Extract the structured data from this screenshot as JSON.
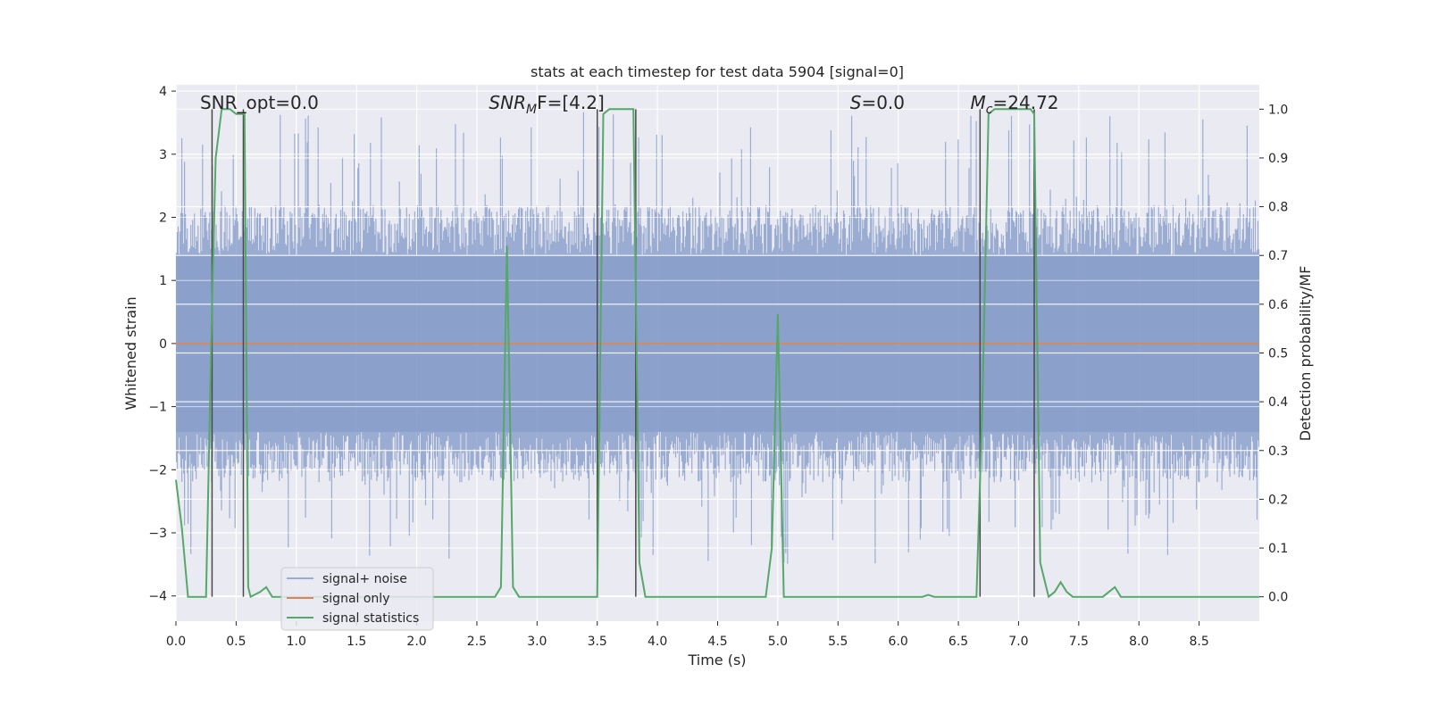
{
  "chart_data": {
    "type": "line",
    "title": "stats at each timestep for test data 5904 [signal=0]",
    "xlabel": "Time (s)",
    "ylabel_left": "Whitened strain",
    "ylabel_right": "Detection probability/MF",
    "xlim": [
      0.0,
      9.0
    ],
    "ylim_left": [
      -4.4,
      4.1
    ],
    "ylim_right": [
      -0.05,
      1.05
    ],
    "xticks": [
      "0.0",
      "0.5",
      "1.0",
      "1.5",
      "2.0",
      "2.5",
      "3.0",
      "3.5",
      "4.0",
      "4.5",
      "5.0",
      "5.5",
      "6.0",
      "6.5",
      "7.0",
      "7.5",
      "8.0",
      "8.5"
    ],
    "yticks_left": [
      "4",
      "3",
      "2",
      "1",
      "0",
      "−1",
      "−2",
      "−3",
      "−4"
    ],
    "yticks_right": [
      "1.0",
      "0.9",
      "0.8",
      "0.7",
      "0.6",
      "0.5",
      "0.4",
      "0.3",
      "0.2",
      "0.1",
      "0.0"
    ],
    "grid": true,
    "background": "#eaeaf2",
    "annotations": [
      {
        "text": "SNR_opt=0.0",
        "x": 0.2
      },
      {
        "text": "SNR_MF=[4.2]",
        "x": 2.6,
        "math": {
          "base": "SNR",
          "sub": "M",
          "rest": "F=[4.2]"
        }
      },
      {
        "text": "S=0.0",
        "x": 5.6,
        "math": {
          "base": "S",
          "sub": "",
          "rest": "=0.0"
        }
      },
      {
        "text": "M_c=24.72",
        "x": 6.6,
        "math": {
          "base": "M",
          "sub": "c",
          "rest": "=24.72"
        }
      }
    ],
    "vertical_markers": [
      0.3,
      0.56,
      3.5,
      3.82,
      6.68,
      7.13
    ],
    "series": [
      {
        "name": "signal+ noise",
        "color": "#7f97c6",
        "description": "noise envelope",
        "amplitude_typical": 1.4,
        "peak_max": 3.7,
        "trough_min": -3.5
      },
      {
        "name": "signal only",
        "color": "#dd8452",
        "values_constant": 0.0
      },
      {
        "name": "signal statistics",
        "color": "#55a868",
        "x": [
          0.0,
          0.05,
          0.1,
          0.2,
          0.25,
          0.3,
          0.33,
          0.38,
          0.45,
          0.5,
          0.55,
          0.57,
          0.6,
          0.62,
          0.7,
          0.75,
          0.8,
          0.9,
          1.0,
          2.0,
          2.5,
          2.65,
          2.7,
          2.75,
          2.8,
          2.85,
          3.0,
          3.4,
          3.5,
          3.55,
          3.6,
          3.7,
          3.75,
          3.8,
          3.85,
          3.9,
          4.0,
          4.5,
          4.9,
          4.95,
          5.0,
          5.05,
          5.1,
          5.5,
          6.0,
          6.2,
          6.25,
          6.3,
          6.6,
          6.65,
          6.7,
          6.75,
          6.8,
          7.0,
          7.1,
          7.13,
          7.18,
          7.25,
          7.3,
          7.35,
          7.4,
          7.45,
          7.5,
          7.7,
          7.75,
          7.8,
          7.85,
          7.9,
          8.0,
          8.5,
          9.0
        ],
        "values": [
          0.24,
          0.14,
          0.0,
          0.0,
          0.0,
          0.6,
          0.9,
          1.0,
          1.0,
          0.99,
          0.99,
          0.99,
          0.02,
          0.0,
          0.01,
          0.02,
          0.0,
          0.0,
          0.0,
          0.0,
          0.0,
          0.0,
          0.02,
          0.72,
          0.02,
          0.0,
          0.0,
          0.0,
          0.0,
          0.99,
          1.0,
          1.0,
          1.0,
          1.0,
          0.07,
          0.0,
          0.0,
          0.0,
          0.0,
          0.1,
          0.58,
          0.0,
          0.0,
          0.0,
          0.0,
          0.0,
          0.004,
          0.0,
          0.0,
          0.0,
          0.4,
          0.99,
          1.0,
          1.0,
          1.0,
          0.99,
          0.07,
          0.0,
          0.01,
          0.03,
          0.01,
          0.0,
          0.0,
          0.0,
          0.01,
          0.02,
          0.0,
          0.0,
          0.0,
          0.0,
          0.0
        ]
      }
    ],
    "legend": {
      "placement": "lower-left",
      "entries": [
        "signal+ noise",
        "signal only",
        "signal statistics"
      ]
    }
  }
}
